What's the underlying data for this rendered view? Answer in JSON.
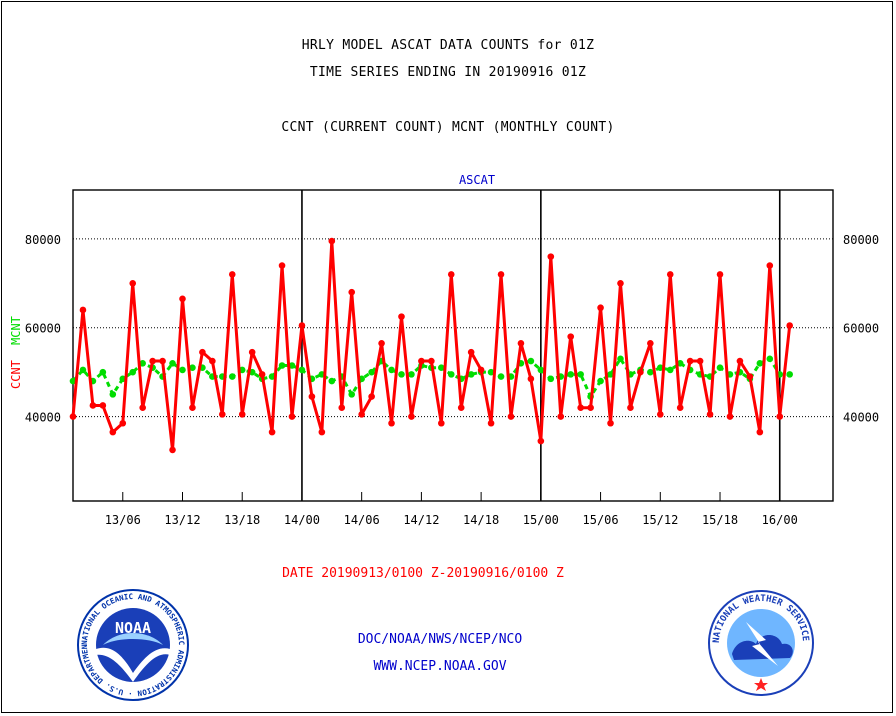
{
  "titles": {
    "line1": "HRLY MODEL ASCAT DATA COUNTS for 01Z",
    "line2": "TIME SERIES ENDING IN 20190916 01Z",
    "line3": "CCNT (CURRENT COUNT) MCNT (MONTHLY COUNT)"
  },
  "chart_data": {
    "type": "line",
    "title": "ASCAT",
    "ylabel_ccnt": "CCNT",
    "ylabel_mcnt": "MCNT",
    "xlabel": "DATE 20190913/0100 Z-20190916/0100 Z",
    "x_ticks": [
      "13/06",
      "13/12",
      "13/18",
      "14/00",
      "14/06",
      "14/12",
      "14/18",
      "15/00",
      "15/06",
      "15/12",
      "15/18",
      "16/00"
    ],
    "y_ticks": [
      "40000",
      "60000",
      "80000"
    ],
    "ylim": [
      21000,
      91000
    ],
    "grid": true,
    "colors": {
      "ccnt": "#ff0000",
      "mcnt": "#00dd00",
      "title": "#0000cc",
      "axis": "#000000"
    },
    "series": [
      {
        "name": "CCNT",
        "values": [
          40000,
          64000,
          42500,
          42500,
          36500,
          38500,
          70000,
          42000,
          52500,
          52500,
          32500,
          66500,
          42000,
          54500,
          52500,
          40500,
          72000,
          40500,
          54500,
          49500,
          36500,
          74000,
          40000,
          60500,
          44500,
          36500,
          79500,
          42000,
          68000,
          40500,
          44500,
          56500,
          38500,
          62500,
          40000,
          52500,
          52500,
          38500,
          72000,
          42000,
          54500,
          50500,
          38500,
          72000,
          40000,
          56500,
          48500,
          34500,
          76000,
          40000,
          58000,
          42000,
          42000,
          64500,
          38500,
          70000,
          42000,
          50000,
          56500,
          40500,
          72000,
          42000,
          52500,
          52500,
          40500,
          72000,
          40000,
          52500,
          49000,
          36500,
          74000,
          40000,
          60500
        ]
      },
      {
        "name": "MCNT",
        "values": [
          48000,
          50500,
          48000,
          50000,
          45000,
          48500,
          50000,
          52000,
          51000,
          49000,
          52000,
          50500,
          51000,
          51000,
          49000,
          49000,
          49000,
          50500,
          50000,
          48500,
          49000,
          51500,
          51500,
          50500,
          48500,
          49500,
          48000,
          49000,
          45000,
          48500,
          50000,
          52500,
          50500,
          49500,
          49500,
          51500,
          51000,
          51000,
          49500,
          48500,
          49500,
          50000,
          50000,
          49000,
          49000,
          52000,
          52500,
          50500,
          48500,
          49000,
          49500,
          49500,
          44500,
          48000,
          49500,
          53000,
          49500,
          50500,
          50000,
          51000,
          50500,
          52000,
          50500,
          49500,
          49000,
          51000,
          49500,
          50000,
          48500,
          52000,
          53000,
          49500,
          49500
        ]
      }
    ]
  },
  "credits": {
    "line1": "DOC/NOAA/NWS/NCEP/NCO",
    "line2": "WWW.NCEP.NOAA.GOV"
  },
  "logos": {
    "noaa_badge": "NOAA",
    "noaa_ring": "NATIONAL OCEANIC AND ATMOSPHERIC ADMINISTRATION · U.S. DEPARTMENT OF COMMERCE ·",
    "nws_ring": "NATIONAL WEATHER SERVICE"
  }
}
